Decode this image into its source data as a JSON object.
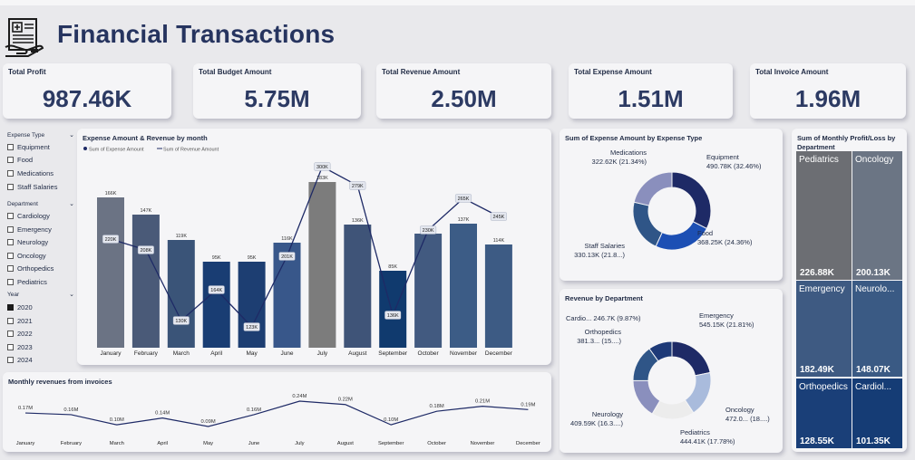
{
  "header": {
    "title": "Financial Transactions",
    "logo_icon": "invoice-document-icon"
  },
  "kpis": [
    {
      "label": "Total Profit",
      "value": "987.46K"
    },
    {
      "label": "Total Budget Amount",
      "value": "5.75M"
    },
    {
      "label": "Total Revenue Amount",
      "value": "2.50M"
    },
    {
      "label": "Total Expense Amount",
      "value": "1.51M"
    },
    {
      "label": "Total Invoice Amount",
      "value": "1.96M"
    }
  ],
  "slicers": {
    "expense_type": {
      "label": "Expense Type",
      "items": [
        "Equipment",
        "Food",
        "Medications",
        "Staff Salaries"
      ]
    },
    "department": {
      "label": "Department",
      "items": [
        "Cardiology",
        "Emergency",
        "Neurology",
        "Oncology",
        "Orthopedics",
        "Pediatrics"
      ]
    },
    "year": {
      "label": "Year",
      "items": [
        "2020",
        "2021",
        "2022",
        "2023",
        "2024"
      ],
      "selected": "2020"
    }
  },
  "colors": {
    "navy": "#1e2a66",
    "blue": "#1c4fb4",
    "mid_blue": "#2f5587",
    "lavender": "#8a8fbd",
    "light_blue": "#a9bbdc",
    "grey": "#7a7a7a",
    "slate": "#4a5a78",
    "bar_dark": "#0f3566"
  },
  "chart_data": [
    {
      "type": "bar",
      "title": "Expense Amount & Revenue by month",
      "legend": [
        "Sum of Expense Amount",
        "Sum of Revenue Amount"
      ],
      "legend_position": "top-left",
      "categories": [
        "January",
        "February",
        "March",
        "April",
        "May",
        "June",
        "July",
        "August",
        "September",
        "October",
        "November",
        "December"
      ],
      "series": [
        {
          "name": "Sum of Expense Amount",
          "values": [
            166,
            147,
            119,
            95,
            95,
            116,
            183,
            136,
            85,
            126,
            137,
            114
          ],
          "labels": [
            "166K",
            "147K",
            "119K",
            "95K",
            "95K",
            "116K",
            "183K",
            "136K",
            "85K",
            "126K",
            "137K",
            "114K"
          ]
        },
        {
          "name": "Sum of Revenue Amount",
          "values": [
            220,
            208,
            130,
            164,
            123,
            201,
            300,
            279,
            136,
            230,
            265,
            245
          ],
          "labels": [
            "220K",
            "208K",
            "130K",
            "164K",
            "123K",
            "201K",
            "300K",
            "279K",
            "136K",
            "230K",
            "265K",
            "245K"
          ]
        }
      ],
      "highlight_category": "July"
    },
    {
      "type": "line",
      "title": "Monthly revenues from invoices",
      "categories": [
        "January",
        "February",
        "March",
        "April",
        "May",
        "June",
        "July",
        "August",
        "September",
        "October",
        "November",
        "December"
      ],
      "values": [
        0.17,
        0.16,
        0.1,
        0.14,
        0.09,
        0.16,
        0.24,
        0.22,
        0.1,
        0.18,
        0.21,
        0.19
      ],
      "labels": [
        "0.17M",
        "0.16M",
        "0.10M",
        "0.14M",
        "0.09M",
        "0.16M",
        "0.24M",
        "0.22M",
        "0.10M",
        "0.18M",
        "0.21M",
        "0.19M"
      ]
    },
    {
      "type": "pie",
      "title": "Sum of Expense Amount by Expense Type",
      "slices": [
        {
          "name": "Equipment",
          "value": 490.78,
          "label1": "Equipment",
          "label2": "490.78K (32.46%)"
        },
        {
          "name": "Food",
          "value": 368.25,
          "label1": "Food",
          "label2": "368.25K (24.36%)"
        },
        {
          "name": "Staff Salaries",
          "value": 330.13,
          "label1": "Staff Salaries",
          "label2": "330.13K (21.8...)"
        },
        {
          "name": "Medications",
          "value": 322.62,
          "label1": "Medications",
          "label2": "322.62K (21.34%)"
        }
      ]
    },
    {
      "type": "pie",
      "title": "Revenue by Department",
      "slices": [
        {
          "name": "Emergency",
          "value": 545.15,
          "label1": "Emergency",
          "label2": "545.15K (21.81%)"
        },
        {
          "name": "Oncology",
          "value": 472.0,
          "label1": "Oncology",
          "label2": "472.0... (18....)"
        },
        {
          "name": "Pediatrics",
          "value": 444.41,
          "label1": "Pediatrics",
          "label2": "444.41K (17.78%)"
        },
        {
          "name": "Neurology",
          "value": 409.59,
          "label1": "Neurology",
          "label2": "409.59K (16.3....)"
        },
        {
          "name": "Orthopedics",
          "value": 381.3,
          "label1": "Orthopedics",
          "label2": "381.3... (15....)"
        },
        {
          "name": "Cardiology",
          "value": 246.7,
          "label1": "Cardio... 246.7K (9.87%)",
          "label2": ""
        }
      ]
    },
    {
      "type": "heatmap",
      "title": "Sum of Monthly Profit/Loss by Department",
      "cells": [
        {
          "name": "Pediatrics",
          "value": "226.88K"
        },
        {
          "name": "Oncology",
          "value": "200.13K"
        },
        {
          "name": "Emergency",
          "value": "182.49K"
        },
        {
          "name": "Neurolo...",
          "value": "148.07K"
        },
        {
          "name": "Orthopedics",
          "value": "128.55K"
        },
        {
          "name": "Cardiol...",
          "value": "101.35K"
        }
      ]
    }
  ]
}
